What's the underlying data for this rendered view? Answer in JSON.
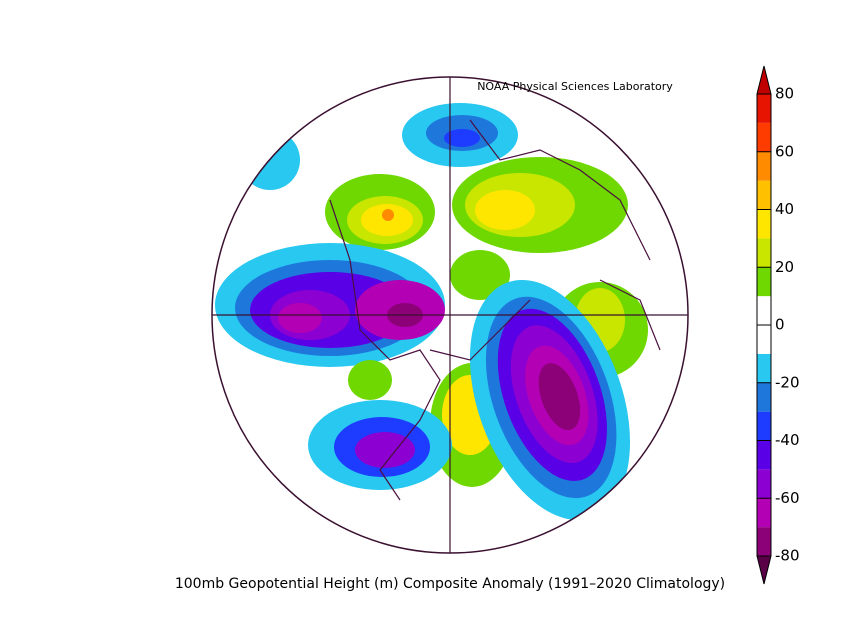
{
  "header": {
    "credit": "NOAA Physical Sciences Laboratory"
  },
  "caption": "100mb Geopotential Height (m) Composite Anomaly (1991–2020 Climatology)",
  "colorbar": {
    "lim": [
      -80,
      80
    ],
    "ticks": [
      -80,
      -60,
      -40,
      -20,
      0,
      20,
      40,
      60,
      80
    ],
    "colors": [
      "#8c0078",
      "#b400b4",
      "#8c00d2",
      "#5a00e6",
      "#1e3cff",
      "#1e78dc",
      "#28c8f0",
      "#ffffff",
      "#ffffff",
      "#6ed800",
      "#c8e600",
      "#ffe600",
      "#ffc000",
      "#ff8c00",
      "#ff3c00",
      "#e61400"
    ],
    "under_color": "#5a0046",
    "over_color": "#c00000"
  }
}
